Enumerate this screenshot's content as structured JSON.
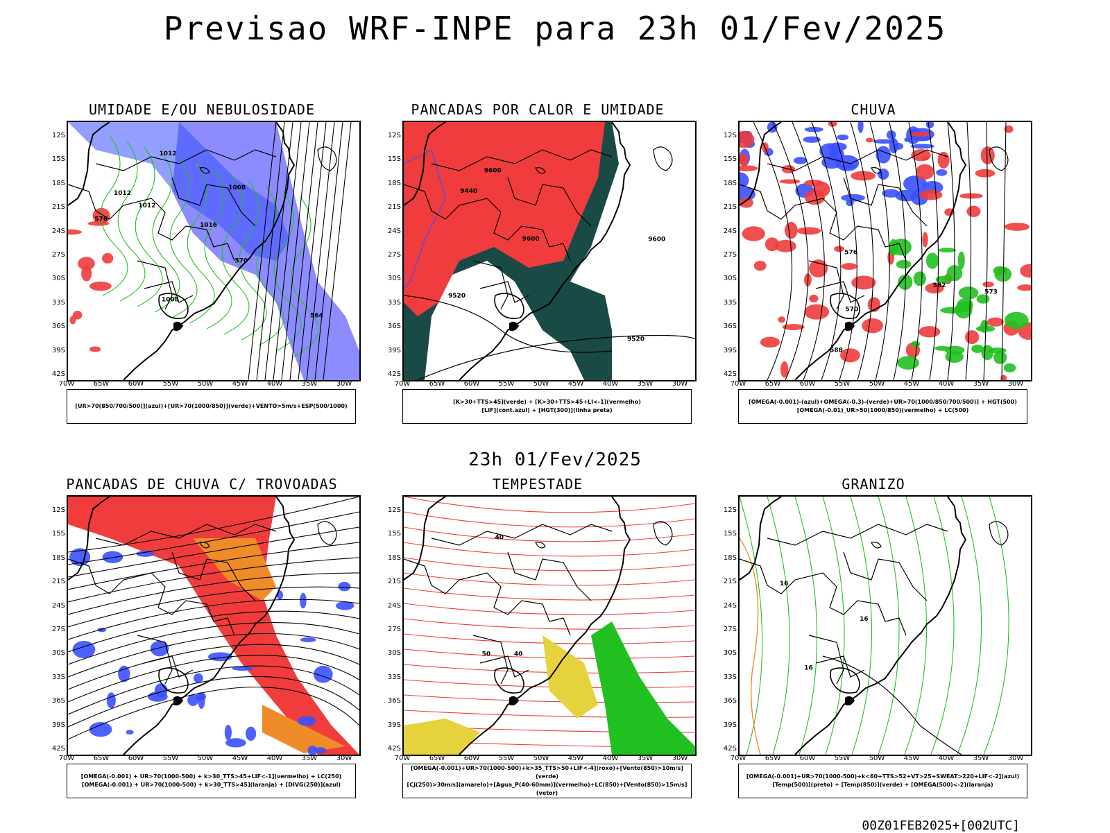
{
  "header": {
    "title": "Previsao WRF-INPE  para 23h 01/Fev/2025",
    "mid_time": "23h 01/Fev/2025",
    "run_info": "00Z01FEB2025+[002UTC]"
  },
  "axes": {
    "lat_labels": [
      "12S",
      "15S",
      "18S",
      "21S",
      "24S",
      "27S",
      "30S",
      "33S",
      "36S",
      "39S",
      "42S"
    ],
    "lon_labels": [
      "70W",
      "65W",
      "60W",
      "55W",
      "50W",
      "45W",
      "40W",
      "35W",
      "30W"
    ]
  },
  "panels": [
    {
      "id": "umidade",
      "title": "UMIDADE E/OU NEBULOSIDADE",
      "legend": [
        "[UR>70(850/700/500)](azul)+[UR>70(1000/850)](verde)+VENTO>5m/s+ESP(500/1000)"
      ],
      "contour_labels": [
        "1012",
        "1012",
        "1016",
        "1012",
        "1008",
        "1008",
        "576",
        "570",
        "564"
      ]
    },
    {
      "id": "pancadas-calor",
      "title": "PANCADAS POR CALOR E UMIDADE",
      "legend": [
        "[K>30+TTS>45](verde) + [K>30+TTS>45+LI<-1](vermelho)",
        "[LIF](cont.azul) + [HGT(300)](linha preta)"
      ],
      "contour_labels": [
        "9600",
        "9600",
        "9600",
        "9520",
        "9520",
        "9440"
      ]
    },
    {
      "id": "chuva",
      "title": "CHUVA",
      "legend": [
        "[OMEGA(-0.001)-(azul)+OMEGA(-0.3)-(verde)+UR>70(1000/850/700/500)] + HGT(500)",
        "[OMEGA(-0.01)_UR>50(1000/850)(vermelho) + LC(500)"
      ],
      "contour_labels": [
        "588",
        "582",
        "576",
        "570",
        "573"
      ]
    },
    {
      "id": "trovoadas",
      "title": "PANCADAS DE CHUVA C/ TROVOADAS",
      "legend": [
        "[OMEGA(-0.001) + UR>70(1000-500) + k>30_TTS>45+LIF<-1](vermelho) + LC(250)",
        "[OMEGA(-0.001) + UR>70(1000-500) + k>30_TTS>45](laranja) + [DIVG(250)](azul)"
      ],
      "contour_labels": []
    },
    {
      "id": "tempestade",
      "title": "TEMPESTADE",
      "legend": [
        "[OMEGA(-0.001)+UR>70(1000-500)+k>35_TTS>50+LIF<-4](roxo)+[Vento(850)>10m/s](verde)",
        "[CJ(250)>30m/s](amarelo)+[Agua_P(40-60mm)](vermelho)+LC(850)+[Vento(850)>15m/s](vetor)"
      ],
      "contour_labels": [
        "40",
        "40",
        "50"
      ]
    },
    {
      "id": "granizo",
      "title": "GRANIZO",
      "legend": [
        "[OMEGA(-0.001)+UR>70(1000-500)+k<60+TTS>52+VT>25+SWEAT>220+LIF<-2](azul)",
        "[Temp(500)](preto) + [Temp(850)](verde) + [OMEGA(500)<-2](laranja)"
      ],
      "contour_labels": [
        "16",
        "16",
        "16"
      ]
    }
  ],
  "colors": {
    "red": "#f03c3c",
    "blue": "#3a50ff",
    "lightblue": "#8c8cff",
    "green": "#20c020",
    "darkgreen": "#1a4a45",
    "orange": "#f08c28",
    "yellow": "#e6d23c",
    "black": "#000000"
  }
}
